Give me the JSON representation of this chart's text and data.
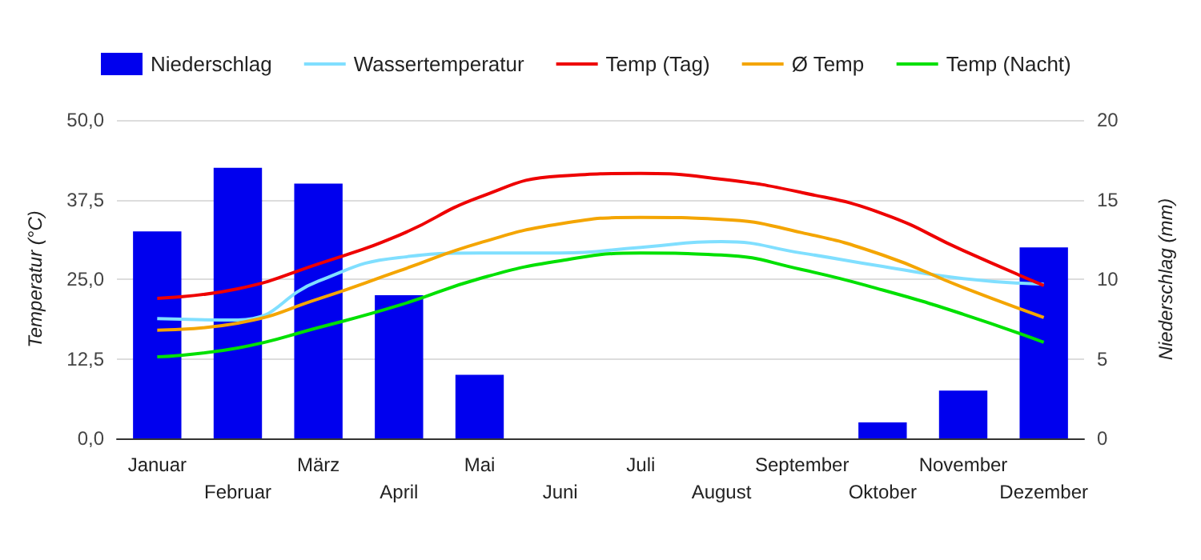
{
  "chart_data": {
    "type": "line",
    "categories": [
      "Januar",
      "Februar",
      "März",
      "April",
      "Mai",
      "Juni",
      "Juli",
      "August",
      "September",
      "Oktober",
      "November",
      "Dezember"
    ],
    "ylabel": "Temperatur (°C)",
    "y2label": "Niederschlag (mm)",
    "ylim": [
      0,
      50
    ],
    "yticks": [
      {
        "value": 0,
        "label": "0,0"
      },
      {
        "value": 12.5,
        "label": "12,5"
      },
      {
        "value": 25,
        "label": "25,0"
      },
      {
        "value": 37.5,
        "label": "37,5"
      },
      {
        "value": 50,
        "label": "50,0"
      }
    ],
    "y2lim": [
      0,
      20
    ],
    "y2ticks": [
      0,
      5,
      10,
      15,
      20
    ],
    "grid": "y",
    "legend": "top",
    "marker": "none",
    "series": [
      {
        "name": "Niederschlag",
        "type": "bar",
        "axis": "y2",
        "color": "#0000ee",
        "values": [
          13,
          17,
          16,
          9,
          4,
          0,
          0,
          0,
          0,
          1,
          3,
          12
        ]
      },
      {
        "name": "Wassertemperatur",
        "color": "#80dfff",
        "values": [
          18.8,
          18.6,
          24.7,
          28.4,
          29.1,
          29.1,
          30,
          30.9,
          29.1,
          27,
          25.1,
          24.2
        ]
      },
      {
        "name": "Temp (Tag)",
        "color": "#ee0000",
        "values": [
          22,
          23.5,
          27.4,
          31.9,
          37.9,
          41.2,
          41.6,
          40.7,
          38.6,
          35.3,
          29.5,
          24
        ]
      },
      {
        "name": "Ø Temp",
        "color": "#f4a500",
        "values": [
          17,
          18.1,
          21.9,
          26.3,
          30.7,
          33.7,
          34.7,
          34.4,
          32.3,
          28.8,
          23.7,
          19
        ]
      },
      {
        "name": "Temp (Nacht)",
        "color": "#00e000",
        "values": [
          12.8,
          14.2,
          17.4,
          20.9,
          25.1,
          27.9,
          29.1,
          28.8,
          26.5,
          23.3,
          19.5,
          15.1
        ]
      }
    ]
  }
}
